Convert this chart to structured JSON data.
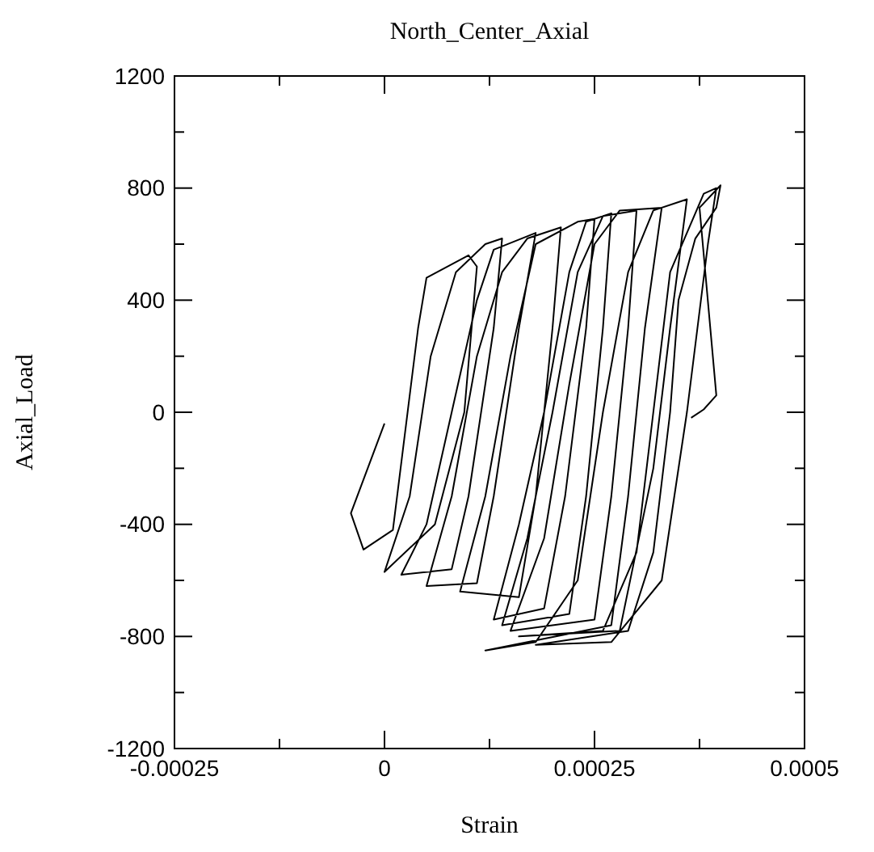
{
  "chart_data": {
    "type": "line",
    "title": "North_Center_Axial",
    "xlabel": "Strain",
    "ylabel": "Axial_Load",
    "xlim": [
      -0.00025,
      0.0005
    ],
    "ylim": [
      -1200,
      1200
    ],
    "xticks": [
      -0.00025,
      {
        "value": -0.000125,
        "label": null
      },
      0,
      {
        "value": 0.000125,
        "label": null
      },
      0.00025,
      {
        "value": 0.000375,
        "label": null
      },
      0.0005
    ],
    "yticks": [
      -1200,
      {
        "value": -1000,
        "label": null
      },
      -800,
      {
        "value": -600,
        "label": null
      },
      -400,
      {
        "value": -200,
        "label": null
      },
      0,
      {
        "value": 200,
        "label": null
      },
      400,
      {
        "value": 600,
        "label": null
      },
      800,
      {
        "value": 1000,
        "label": null
      },
      1200
    ],
    "x": [
      0,
      -4e-05,
      -2.5e-05,
      1e-05,
      4e-05,
      5e-05,
      0.0001,
      0.00011,
      9.5e-05,
      6e-05,
      0,
      3e-05,
      5.5e-05,
      8.5e-05,
      0.00012,
      0.00014,
      0.00013,
      0.0001,
      8e-05,
      2e-05,
      5e-05,
      8e-05,
      0.00011,
      0.00013,
      0.00018,
      0.00016,
      0.00013,
      0.00011,
      5e-05,
      8e-05,
      0.00011,
      0.00014,
      0.00017,
      0.00021,
      0.0002,
      0.00018,
      0.00016,
      9e-05,
      0.00012,
      0.00015,
      0.00018,
      0.00023,
      0.00025,
      0.00024,
      0.000215,
      0.00019,
      0.00013,
      0.00016,
      0.00019,
      0.00022,
      0.00024,
      0.00027,
      0.00026,
      0.00024,
      0.00022,
      0.00014,
      0.00017,
      0.0002,
      0.00023,
      0.00026,
      0.0003,
      0.00029,
      0.00027,
      0.00025,
      0.00015,
      0.00019,
      0.00022,
      0.00025,
      0.00028,
      0.00033,
      0.00031,
      0.00029,
      0.00027,
      0.00012,
      0.00018,
      0.00023,
      0.00026,
      0.00029,
      0.00032,
      0.00036,
      0.00034,
      0.00032,
      0.00028,
      0.00016,
      0.00026,
      0.0003,
      0.00032,
      0.00034,
      0.00038,
      0.000395,
      0.000385,
      0.00036,
      0.00033,
      0.00027,
      0.00018,
      0.00029,
      0.00032,
      0.00034,
      0.00035,
      0.00037,
      0.000395,
      0.0004,
      0.000375,
      0.000395,
      0.00038,
      0.000365
    ],
    "series": [
      {
        "color": "#000000",
        "values": [
          -40,
          -360,
          -490,
          -420,
          300,
          480,
          560,
          520,
          0,
          -400,
          -570,
          -300,
          200,
          500,
          600,
          620,
          300,
          -300,
          -560,
          -580,
          -400,
          0,
          400,
          580,
          640,
          300,
          -300,
          -610,
          -620,
          -300,
          200,
          500,
          620,
          660,
          300,
          -300,
          -660,
          -640,
          -300,
          200,
          600,
          680,
          690,
          300,
          -300,
          -700,
          -740,
          -400,
          0,
          500,
          680,
          710,
          300,
          -300,
          -720,
          -760,
          -450,
          0,
          500,
          700,
          720,
          300,
          -300,
          -740,
          -780,
          -450,
          100,
          600,
          720,
          730,
          300,
          -300,
          -760,
          -850,
          -820,
          -600,
          0,
          500,
          720,
          760,
          300,
          -200,
          -780,
          -800,
          -780,
          -500,
          0,
          500,
          780,
          800,
          600,
          0,
          -600,
          -820,
          -830,
          -780,
          -500,
          0,
          400,
          620,
          730,
          810,
          730,
          60,
          10,
          -20
        ]
      }
    ]
  }
}
